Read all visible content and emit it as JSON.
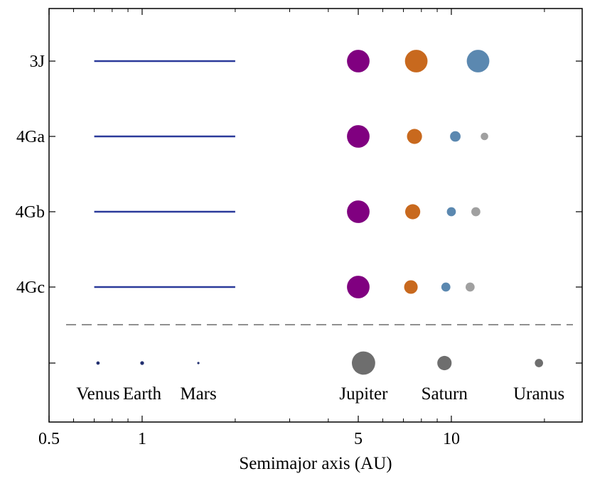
{
  "chart_data": {
    "type": "scatter",
    "xlabel": "Semimajor axis (AU)",
    "xscale": "log",
    "xlim": [
      0.5,
      30
    ],
    "x_ticks": [
      0.5,
      1,
      5,
      10
    ],
    "x_tick_labels": [
      "0.5",
      "1",
      "5",
      "10"
    ],
    "x_minor_ticks": [
      0.6,
      0.7,
      0.8,
      0.9,
      2,
      3,
      4,
      6,
      7,
      8,
      9,
      20,
      30
    ],
    "rows": [
      {
        "label": "3J",
        "disk": {
          "from_au": 0.7,
          "to_au": 2.0,
          "color": "#2b3a9a"
        },
        "planets": [
          {
            "a": 5.0,
            "size": 3,
            "color": "#800080"
          },
          {
            "a": 7.7,
            "size": 3,
            "color": "#c8691e"
          },
          {
            "a": 12.2,
            "size": 3,
            "color": "#5b88b0"
          }
        ]
      },
      {
        "label": "4Ga",
        "disk": {
          "from_au": 0.7,
          "to_au": 2.0,
          "color": "#2b3a9a"
        },
        "planets": [
          {
            "a": 5.0,
            "size": 3,
            "color": "#800080"
          },
          {
            "a": 7.6,
            "size": 2,
            "color": "#c8691e"
          },
          {
            "a": 10.3,
            "size": 1.4,
            "color": "#5b88b0"
          },
          {
            "a": 12.8,
            "size": 1,
            "color": "#a0a0a0"
          }
        ]
      },
      {
        "label": "4Gb",
        "disk": {
          "from_au": 0.7,
          "to_au": 2.0,
          "color": "#2b3a9a"
        },
        "planets": [
          {
            "a": 5.0,
            "size": 3,
            "color": "#800080"
          },
          {
            "a": 7.5,
            "size": 2,
            "color": "#c8691e"
          },
          {
            "a": 10.0,
            "size": 1.2,
            "color": "#5b88b0"
          },
          {
            "a": 12.0,
            "size": 1.2,
            "color": "#a0a0a0"
          }
        ]
      },
      {
        "label": "4Gc",
        "disk": {
          "from_au": 0.7,
          "to_au": 2.0,
          "color": "#2b3a9a"
        },
        "planets": [
          {
            "a": 5.0,
            "size": 3,
            "color": "#800080"
          },
          {
            "a": 7.4,
            "size": 1.8,
            "color": "#c8691e"
          },
          {
            "a": 9.6,
            "size": 1.2,
            "color": "#5b88b0"
          },
          {
            "a": 11.5,
            "size": 1.2,
            "color": "#a0a0a0"
          }
        ]
      }
    ],
    "solar_system": {
      "planets": [
        {
          "name": "Venus",
          "a": 0.72,
          "size": 0.45,
          "color": "#233070"
        },
        {
          "name": "Earth",
          "a": 1.0,
          "size": 0.5,
          "color": "#233070"
        },
        {
          "name": "Mars",
          "a": 1.52,
          "size": 0.3,
          "color": "#233070"
        },
        {
          "name": "Jupiter",
          "a": 5.2,
          "size": 3.1,
          "color": "#6e6e6e"
        },
        {
          "name": "Saturn",
          "a": 9.5,
          "size": 1.9,
          "color": "#6e6e6e"
        },
        {
          "name": "Uranus",
          "a": 19.2,
          "size": 1.1,
          "color": "#6e6e6e"
        }
      ]
    },
    "separator": "dashed"
  }
}
